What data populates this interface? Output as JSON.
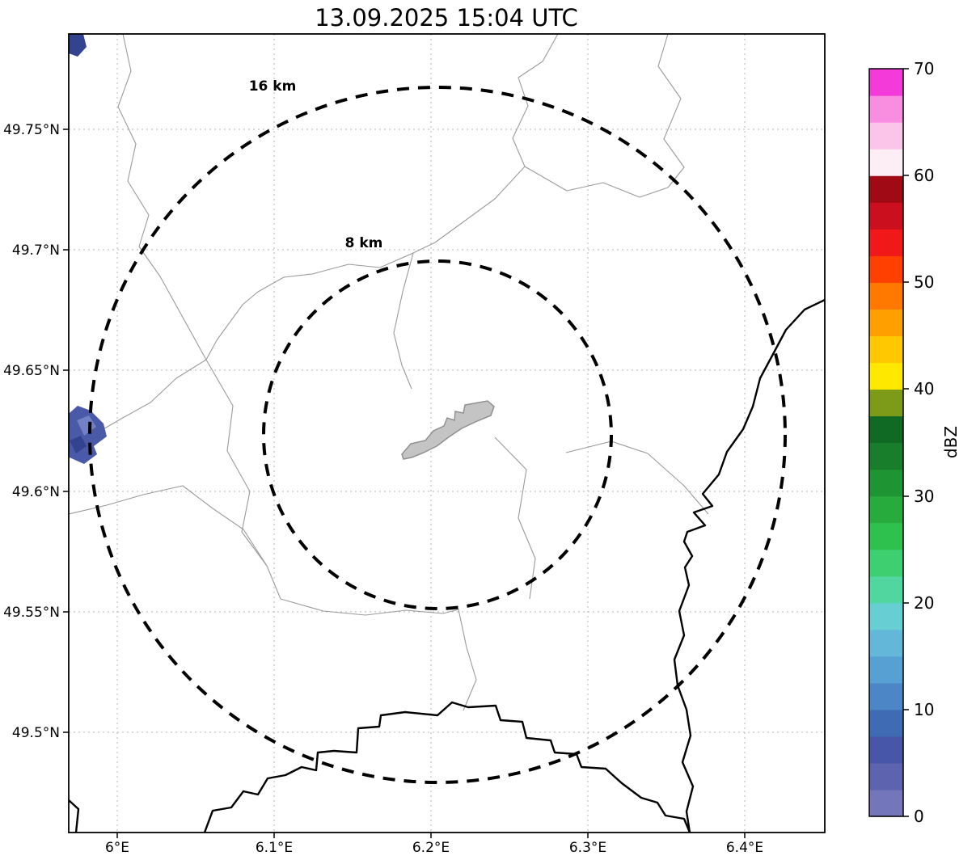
{
  "title": "13.09.2025 15:04 UTC",
  "axes": {
    "x_ticks": [
      "6°E",
      "6.1°E",
      "6.2°E",
      "6.3°E",
      "6.4°E"
    ],
    "y_ticks": [
      "49.75°N",
      "49.7°N",
      "49.65°N",
      "49.6°N",
      "49.55°N",
      "49.5°N"
    ]
  },
  "range_rings": {
    "outer_label": "16 km",
    "inner_label": "8 km"
  },
  "colorbar": {
    "label": "dBZ",
    "tick_labels_top_to_bottom": [
      "70",
      "60",
      "50",
      "40",
      "30",
      "20",
      "10",
      "0"
    ],
    "band_colors_bottom_to_top": [
      "#7377b9",
      "#5d63af",
      "#4756a6",
      "#3f6ab4",
      "#4c86c6",
      "#57a0d4",
      "#63b8d9",
      "#67cfd1",
      "#52d6a0",
      "#3ecf70",
      "#2fc14e",
      "#27ab3d",
      "#1f9433",
      "#187e2b",
      "#116a23",
      "#7d9b18",
      "#ffe800",
      "#ffc800",
      "#ffa000",
      "#ff7800",
      "#ff4000",
      "#f01818",
      "#cc0f1e",
      "#a00a14",
      "#fdeef5",
      "#fbc4e9",
      "#f98ee0",
      "#f43bda"
    ]
  },
  "map": {
    "echo_color_dark": "#34438f",
    "echo_color_mid": "#4a5aa8",
    "echo_color_light": "#7280c4",
    "airport_fill": "#c4c4c4",
    "airport_stroke": "#8f8f8f",
    "border_color": "#000000",
    "boundary_color": "#9a9a9a"
  },
  "chart_data": {
    "type": "heatmap",
    "title": "13.09.2025 15:04 UTC",
    "xlabel": "",
    "ylabel": "",
    "x_tick_values_deg_east": [
      6.0,
      6.1,
      6.2,
      6.3,
      6.4
    ],
    "y_tick_values_deg_north": [
      49.5,
      49.55,
      49.6,
      49.65,
      49.7,
      49.75
    ],
    "xlim_deg_east": [
      5.969,
      6.451
    ],
    "ylim_deg_north": [
      49.458,
      49.789
    ],
    "grid": true,
    "legend_position": "right",
    "colorbar": {
      "label": "dBZ",
      "min": 0,
      "max": 70,
      "tick_step": 10
    },
    "range_rings_km": [
      8,
      16
    ],
    "ring_center": {
      "lon_deg_east": 6.204,
      "lat_deg_north": 49.623
    },
    "echoes": [
      {
        "lon_deg_east": 5.975,
        "lat_deg_north": 49.62,
        "dbz_range": [
          0,
          10
        ],
        "note": "small low-reflectivity echo clipped at western map edge"
      },
      {
        "lon_deg_east": 5.972,
        "lat_deg_north": 49.787,
        "dbz_range": [
          0,
          10
        ],
        "note": "tiny echo at northwest corner of map"
      }
    ]
  }
}
